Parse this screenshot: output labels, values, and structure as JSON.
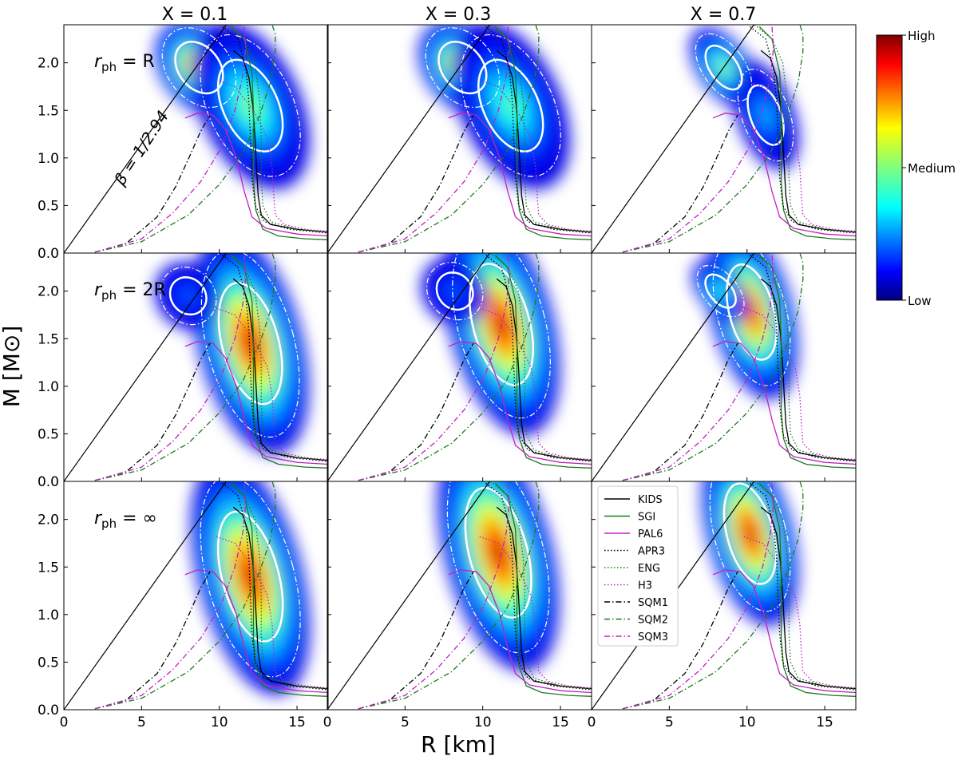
{
  "chart_data": {
    "type": "scatter",
    "description_type": "3x3 grid of mass-radius posterior density panels with EOS curves",
    "xlabel": "R [km]",
    "ylabel": "M [M⊙]",
    "xlim": [
      0,
      17
    ],
    "ylim": [
      0,
      2.4
    ],
    "x_ticks": [
      0,
      5,
      10,
      15
    ],
    "y_ticks": [
      0.0,
      0.5,
      1.0,
      1.5,
      2.0
    ],
    "x_tick_labels": [
      "0",
      "5",
      "10",
      "15"
    ],
    "y_tick_labels": [
      "0.0",
      "0.5",
      "1.0",
      "1.5",
      "2.0"
    ],
    "column_titles": [
      "X = 0.1",
      "X = 0.3",
      "X = 0.7"
    ],
    "row_labels": [
      "r_ph = R",
      "r_ph = 2R",
      "r_ph = ∞"
    ],
    "causality_line": {
      "label": "β = 1/2.94",
      "slope_msun_per_km": 0.2297
    },
    "colorbar": {
      "tick_labels": [
        "High",
        "Medium",
        "Low"
      ],
      "colormap": "jet"
    },
    "eos_curves": [
      {
        "name": "KIDS",
        "color": "#000000",
        "dash": "solid",
        "points": [
          [
            10.9,
            2.13
          ],
          [
            11.5,
            2.05
          ],
          [
            11.9,
            1.85
          ],
          [
            12.15,
            1.55
          ],
          [
            12.3,
            1.2
          ],
          [
            12.4,
            0.9
          ],
          [
            12.5,
            0.6
          ],
          [
            12.7,
            0.4
          ],
          [
            13.3,
            0.3
          ],
          [
            15,
            0.25
          ],
          [
            17,
            0.22
          ]
        ]
      },
      {
        "name": "SGI",
        "color": "#1a7a1a",
        "dash": "solid",
        "points": [
          [
            10.8,
            2.38
          ],
          [
            11.6,
            2.25
          ],
          [
            12.1,
            1.9
          ],
          [
            12.2,
            1.5
          ],
          [
            12.2,
            1.1
          ],
          [
            12.2,
            0.75
          ],
          [
            12.35,
            0.45
          ],
          [
            12.8,
            0.25
          ],
          [
            13.8,
            0.18
          ],
          [
            15.5,
            0.15
          ],
          [
            17,
            0.14
          ]
        ]
      },
      {
        "name": "PAL6",
        "color": "#c020c0",
        "dash": "solid",
        "points": [
          [
            7.8,
            1.42
          ],
          [
            8.6,
            1.47
          ],
          [
            9.6,
            1.45
          ],
          [
            10.4,
            1.3
          ],
          [
            11.1,
            1.0
          ],
          [
            11.6,
            0.65
          ],
          [
            12.1,
            0.38
          ],
          [
            13,
            0.26
          ],
          [
            15,
            0.2
          ],
          [
            17,
            0.18
          ]
        ]
      },
      {
        "name": "APR3",
        "color": "#000000",
        "dash": "1.5,2.5",
        "points": [
          [
            10.2,
            2.38
          ],
          [
            11.2,
            2.25
          ],
          [
            11.7,
            1.95
          ],
          [
            11.9,
            1.6
          ],
          [
            12,
            1.2
          ],
          [
            12.1,
            0.8
          ],
          [
            12.3,
            0.5
          ],
          [
            12.9,
            0.33
          ],
          [
            14.5,
            0.25
          ],
          [
            17,
            0.21
          ]
        ]
      },
      {
        "name": "ENG",
        "color": "#1a7a1a",
        "dash": "1.5,2.5",
        "points": [
          [
            10.5,
            2.4
          ],
          [
            11.6,
            2.25
          ],
          [
            12.3,
            2.0
          ],
          [
            12.6,
            1.6
          ],
          [
            12.7,
            1.2
          ],
          [
            12.7,
            0.8
          ],
          [
            12.8,
            0.5
          ],
          [
            13.3,
            0.33
          ],
          [
            15,
            0.25
          ],
          [
            17,
            0.22
          ]
        ]
      },
      {
        "name": "H3",
        "color": "#c020c0",
        "dash": "1.5,2.5",
        "points": [
          [
            9.8,
            1.82
          ],
          [
            11,
            1.75
          ],
          [
            12.2,
            1.5
          ],
          [
            13.1,
            1.2
          ],
          [
            13.4,
            0.9
          ],
          [
            13.5,
            0.6
          ],
          [
            13.6,
            0.4
          ],
          [
            14.2,
            0.3
          ],
          [
            15.5,
            0.25
          ],
          [
            17,
            0.23
          ]
        ]
      },
      {
        "name": "SQM1",
        "color": "#000000",
        "dash": "7,3,1.5,3",
        "points": [
          [
            2.0,
            0.01
          ],
          [
            4,
            0.1
          ],
          [
            6,
            0.38
          ],
          [
            7.2,
            0.7
          ],
          [
            8.1,
            1.02
          ],
          [
            8.8,
            1.28
          ],
          [
            9.4,
            1.45
          ]
        ]
      },
      {
        "name": "SQM2",
        "color": "#1a7a1a",
        "dash": "7,3,1.5,3",
        "points": [
          [
            2.0,
            0.01
          ],
          [
            5,
            0.12
          ],
          [
            8,
            0.4
          ],
          [
            10,
            0.72
          ],
          [
            11.5,
            1.05
          ],
          [
            12.6,
            1.45
          ],
          [
            13.3,
            1.8
          ],
          [
            13.6,
            2.12
          ],
          [
            13.6,
            2.3
          ],
          [
            13.4,
            2.4
          ]
        ]
      },
      {
        "name": "SQM3",
        "color": "#c020c0",
        "dash": "7,3,1.5,3",
        "points": [
          [
            2.0,
            0.01
          ],
          [
            5,
            0.15
          ],
          [
            7,
            0.42
          ],
          [
            8.8,
            0.75
          ],
          [
            10.1,
            1.1
          ],
          [
            11,
            1.5
          ],
          [
            11.5,
            1.85
          ],
          [
            11.7,
            2.15
          ],
          [
            11.6,
            2.4
          ]
        ]
      }
    ],
    "panels": [
      {
        "row": 0,
        "col": 0,
        "blobs": [
          {
            "cx": 8.7,
            "cy": 1.95,
            "rx": 2.4,
            "ry": 0.32,
            "angle": -38,
            "peak": 0.95
          },
          {
            "cx": 12.0,
            "cy": 1.55,
            "rx": 3.2,
            "ry": 0.55,
            "angle": -25,
            "peak": 0.55
          }
        ]
      },
      {
        "row": 0,
        "col": 1,
        "blobs": [
          {
            "cx": 8.7,
            "cy": 1.95,
            "rx": 2.4,
            "ry": 0.32,
            "angle": -38,
            "peak": 0.92
          },
          {
            "cx": 11.8,
            "cy": 1.55,
            "rx": 3.2,
            "ry": 0.55,
            "angle": -25,
            "peak": 0.5
          }
        ]
      },
      {
        "row": 0,
        "col": 2,
        "blobs": [
          {
            "cx": 8.5,
            "cy": 1.95,
            "rx": 1.6,
            "ry": 0.28,
            "angle": -35,
            "peak": 0.6
          },
          {
            "cx": 11.2,
            "cy": 1.45,
            "rx": 1.8,
            "ry": 0.35,
            "angle": -20,
            "peak": 0.35
          }
        ]
      },
      {
        "row": 1,
        "col": 0,
        "blobs": [
          {
            "cx": 12.0,
            "cy": 1.45,
            "rx": 3.3,
            "ry": 0.7,
            "angle": -15,
            "peak": 1.0
          },
          {
            "cx": 8.0,
            "cy": 1.95,
            "rx": 2.0,
            "ry": 0.22,
            "angle": -40,
            "peak": 0.25
          }
        ]
      },
      {
        "row": 1,
        "col": 1,
        "blobs": [
          {
            "cx": 11.2,
            "cy": 1.65,
            "rx": 3.3,
            "ry": 0.7,
            "angle": -15,
            "peak": 1.0
          },
          {
            "cx": 8.2,
            "cy": 2.0,
            "rx": 2.0,
            "ry": 0.22,
            "angle": -40,
            "peak": 0.25
          }
        ]
      },
      {
        "row": 1,
        "col": 2,
        "blobs": [
          {
            "cx": 10.3,
            "cy": 1.78,
            "rx": 2.6,
            "ry": 0.55,
            "angle": -15,
            "peak": 0.95
          },
          {
            "cx": 8.3,
            "cy": 2.0,
            "rx": 1.3,
            "ry": 0.22,
            "angle": -40,
            "peak": 0.5
          }
        ]
      },
      {
        "row": 2,
        "col": 0,
        "blobs": [
          {
            "cx": 12.0,
            "cy": 1.4,
            "rx": 3.3,
            "ry": 0.75,
            "angle": -15,
            "peak": 1.0
          }
        ]
      },
      {
        "row": 2,
        "col": 1,
        "blobs": [
          {
            "cx": 11.0,
            "cy": 1.65,
            "rx": 3.4,
            "ry": 0.75,
            "angle": -15,
            "peak": 1.0
          }
        ]
      },
      {
        "row": 2,
        "col": 2,
        "blobs": [
          {
            "cx": 10.2,
            "cy": 1.85,
            "rx": 2.7,
            "ry": 0.58,
            "angle": -15,
            "peak": 1.0
          }
        ]
      }
    ]
  }
}
